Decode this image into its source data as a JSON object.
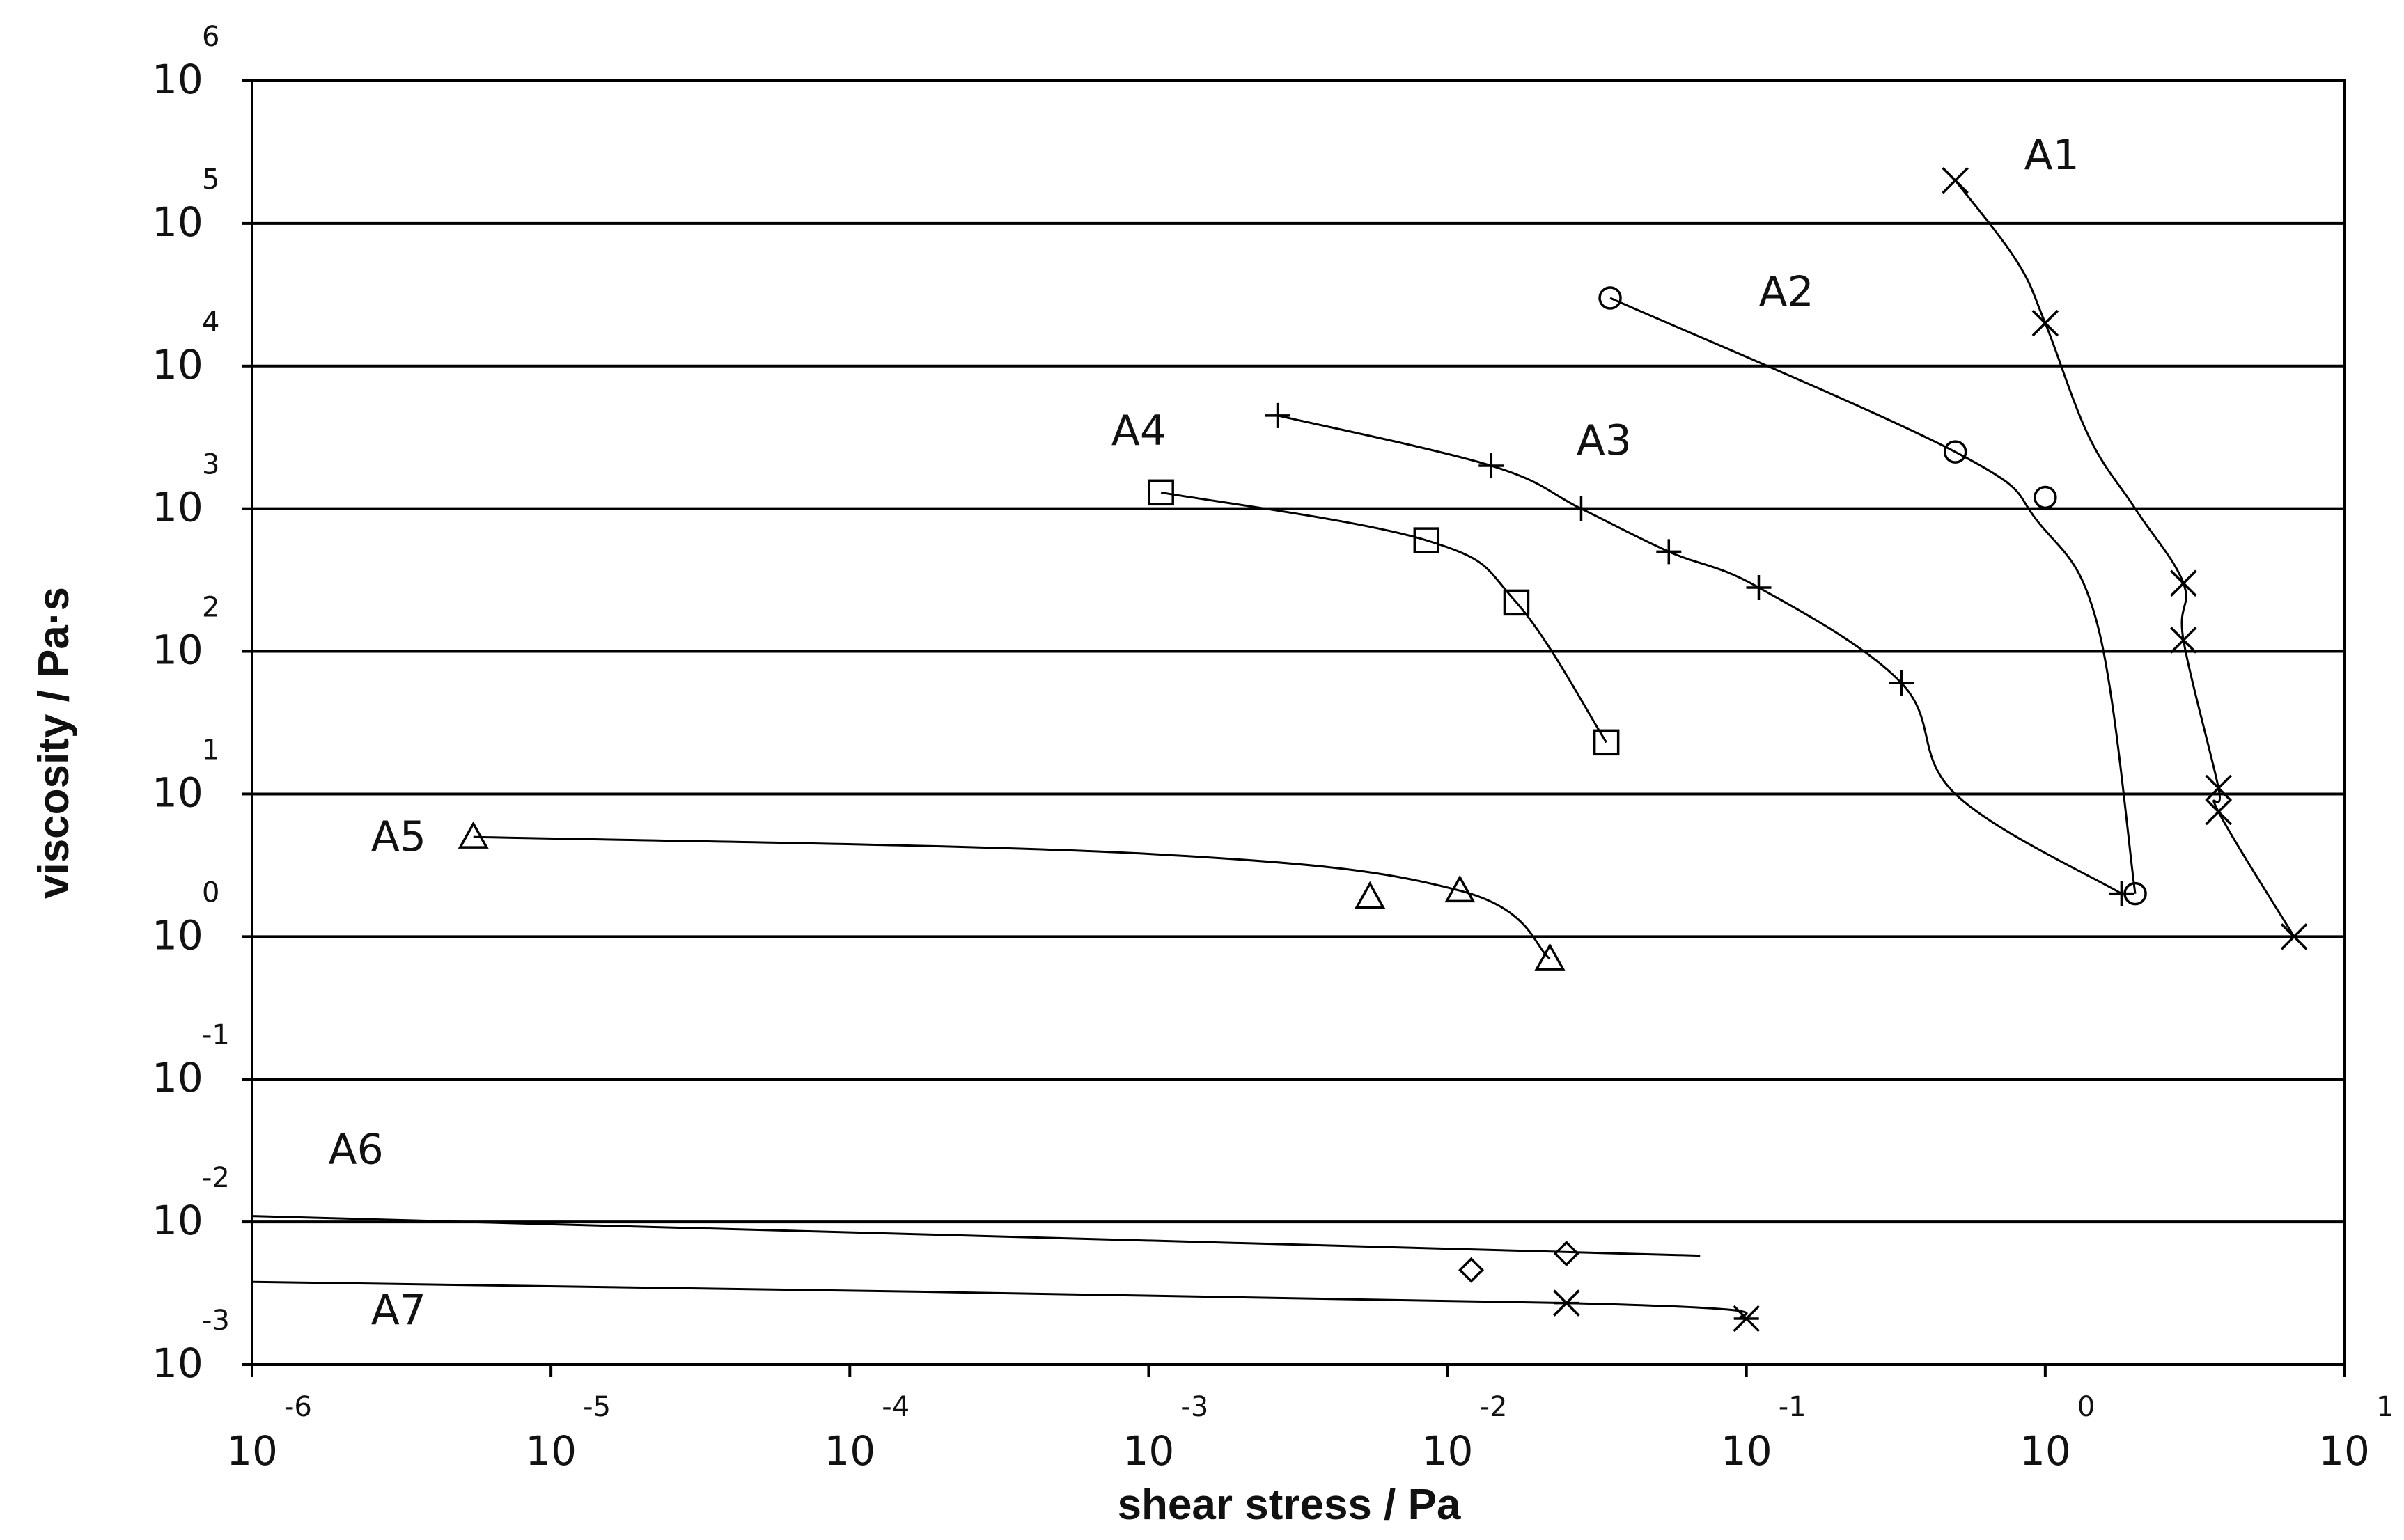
{
  "chart_data": {
    "type": "scatter",
    "xlabel": "shear stress / Pa",
    "ylabel": "viscosity / Pa·s",
    "x_scale": "log",
    "y_scale": "log",
    "xlim": [
      1e-06,
      10
    ],
    "ylim": [
      0.001,
      1000000
    ],
    "grid": "horizontal",
    "x_ticks": [
      {
        "base": "10",
        "exp": "-6"
      },
      {
        "base": "10",
        "exp": "-5"
      },
      {
        "base": "10",
        "exp": "-4"
      },
      {
        "base": "10",
        "exp": "-3"
      },
      {
        "base": "10",
        "exp": "-2"
      },
      {
        "base": "10",
        "exp": "-1"
      },
      {
        "base": "10",
        "exp": "0"
      },
      {
        "base": "10",
        "exp": "1"
      }
    ],
    "y_ticks": [
      {
        "base": "10",
        "exp": "6"
      },
      {
        "base": "10",
        "exp": "5"
      },
      {
        "base": "10",
        "exp": "4"
      },
      {
        "base": "10",
        "exp": "3"
      },
      {
        "base": "10",
        "exp": "2"
      },
      {
        "base": "10",
        "exp": "1"
      },
      {
        "base": "10",
        "exp": "0"
      },
      {
        "base": "10",
        "exp": "-1"
      },
      {
        "base": "10",
        "exp": "-2"
      },
      {
        "base": "10",
        "exp": "-3"
      }
    ],
    "series": [
      {
        "name": "A1",
        "marker": "x",
        "label_at": [
          0.85,
          300000
        ],
        "points": [
          [
            0.5,
            200000
          ],
          [
            1.0,
            20000
          ],
          [
            2.9,
            300
          ],
          [
            2.9,
            120
          ],
          [
            3.8,
            11
          ],
          [
            3.8,
            7.5
          ],
          [
            6.8,
            1.0
          ]
        ],
        "curve": [
          [
            0.5,
            200000
          ],
          [
            0.8,
            55000
          ],
          [
            1.0,
            20000
          ],
          [
            1.4,
            3200
          ],
          [
            2.0,
            1000
          ],
          [
            2.9,
            300
          ],
          [
            2.9,
            120
          ],
          [
            3.8,
            11
          ],
          [
            3.8,
            7.5
          ],
          [
            6.8,
            1.0
          ]
        ]
      },
      {
        "name": "A2",
        "marker": "circle",
        "label_at": [
          0.11,
          33000
        ],
        "points": [
          [
            0.035,
            30000
          ],
          [
            0.5,
            2500
          ],
          [
            1.0,
            1200
          ],
          [
            2.0,
            2.0
          ]
        ],
        "curve": [
          [
            0.035,
            30000
          ],
          [
            0.5,
            2500
          ],
          [
            0.95,
            800
          ],
          [
            1.5,
            150
          ],
          [
            2.0,
            2.0
          ]
        ]
      },
      {
        "name": "A3",
        "marker": "plus",
        "label_at": [
          0.027,
          3000
        ],
        "points": [
          [
            0.0027,
            4500
          ],
          [
            0.014,
            2000
          ],
          [
            0.028,
            1000
          ],
          [
            0.055,
            500
          ],
          [
            0.11,
            280
          ],
          [
            0.33,
            60
          ],
          [
            1.8,
            2.0
          ]
        ],
        "curve": [
          [
            0.0027,
            4500
          ],
          [
            0.014,
            2000
          ],
          [
            0.028,
            1000
          ],
          [
            0.055,
            500
          ],
          [
            0.11,
            280
          ],
          [
            0.33,
            60
          ],
          [
            0.5,
            10
          ],
          [
            1.8,
            2.0
          ]
        ]
      },
      {
        "name": "A4",
        "marker": "square",
        "label_at": [
          0.00075,
          3500
        ],
        "points": [
          [
            0.0011,
            1300
          ],
          [
            0.0085,
            600
          ],
          [
            0.017,
            220
          ],
          [
            0.034,
            23
          ]
        ],
        "curve": [
          [
            0.0011,
            1300
          ],
          [
            0.0085,
            600
          ],
          [
            0.017,
            220
          ],
          [
            0.034,
            23
          ]
        ]
      },
      {
        "name": "A5",
        "marker": "triangle",
        "label_at": [
          2.5e-06,
          5.0
        ],
        "points": [
          [
            5.5e-06,
            5.0
          ],
          [
            0.0055,
            1.9
          ],
          [
            0.011,
            2.1
          ],
          [
            0.022,
            0.7
          ]
        ],
        "curve": [
          [
            5.5e-06,
            5.0
          ],
          [
            0.001,
            3.8
          ],
          [
            0.011,
            2.1
          ],
          [
            0.022,
            0.7
          ]
        ]
      },
      {
        "name": "A6",
        "marker": "diamond",
        "label_at": [
          1.8e-06,
          0.032
        ],
        "points": [
          [
            0.012,
            0.0046
          ],
          [
            0.025,
            0.006
          ]
        ],
        "curve": [
          [
            1e-06,
            0.011
          ],
          [
            0.07,
            0.0058
          ]
        ]
      },
      {
        "name": "A7",
        "marker": "asterisk",
        "label_at": [
          2.5e-06,
          0.0024
        ],
        "points": [
          [
            0.025,
            0.0027
          ],
          [
            0.1,
            0.0021
          ]
        ],
        "curve": [
          [
            1e-06,
            0.0038
          ],
          [
            0.025,
            0.0027
          ],
          [
            0.1,
            0.0021
          ]
        ]
      }
    ]
  }
}
